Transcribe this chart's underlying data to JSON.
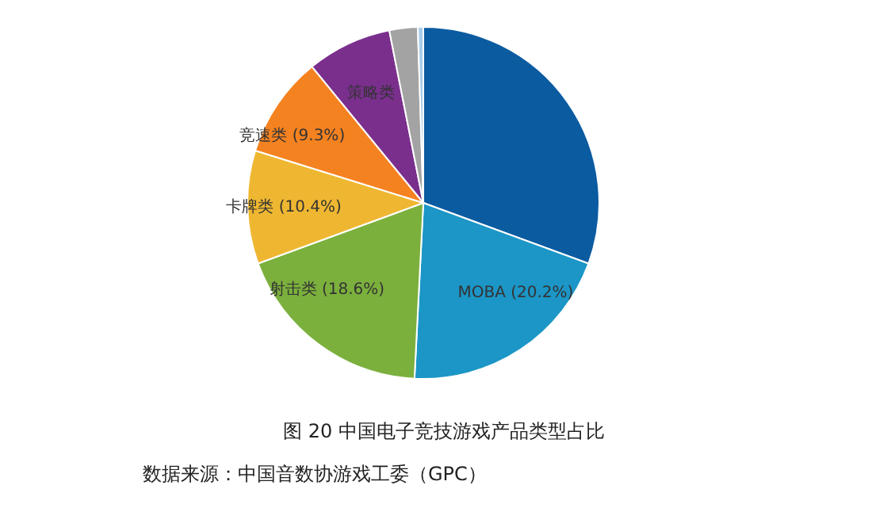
{
  "chart_data": {
    "type": "pie",
    "title": "图 20 中国电子竞技游戏产品类型占比",
    "categories": [
      null,
      "MOBA",
      "射击类",
      "卡牌类",
      "竞速类",
      "策略类",
      null,
      null
    ],
    "values": [
      30.6,
      20.2,
      18.6,
      10.4,
      9.3,
      7.8,
      2.6,
      0.5
    ],
    "colors": [
      "#0b5ba1",
      "#1b96c6",
      "#7bb03d",
      "#efb731",
      "#f58220",
      "#7a2f8d",
      "#a3a3a3",
      "#a9cdea"
    ],
    "value_labels": [
      null,
      "(20.2%)",
      "(18.6%)",
      "(10.4%)",
      "(9.3%)",
      null,
      null,
      null
    ],
    "annotations": [
      "数据来源：中国音数协游戏工委（GPC）"
    ]
  }
}
